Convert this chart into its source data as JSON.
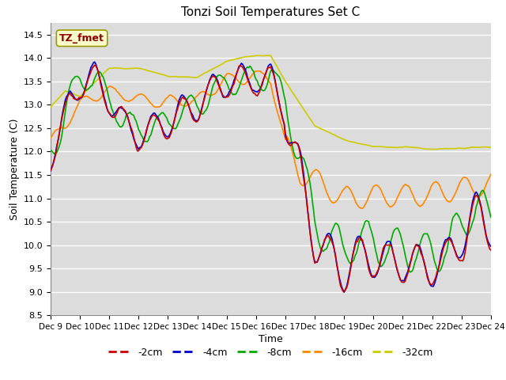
{
  "title": "Tonzi Soil Temperatures Set C",
  "xlabel": "Time",
  "ylabel": "Soil Temperature (C)",
  "ylim": [
    8.5,
    14.75
  ],
  "xlim": [
    0,
    360
  ],
  "plot_bg": "#dcdcdc",
  "fig_bg": "#ffffff",
  "label_box_text": "TZ_fmet",
  "label_box_bg": "#ffffcc",
  "label_box_fg": "#8b0000",
  "grid_color": "#ffffff",
  "series": {
    "-2cm": {
      "color": "#cc0000",
      "lw": 1.2
    },
    "-4cm": {
      "color": "#0000cc",
      "lw": 1.2
    },
    "-8cm": {
      "color": "#00aa00",
      "lw": 1.2
    },
    "-16cm": {
      "color": "#ff8800",
      "lw": 1.2
    },
    "-32cm": {
      "color": "#cccc00",
      "lw": 1.2
    }
  },
  "xtick_labels": [
    "Dec 9",
    "Dec 10",
    "Dec 11",
    "Dec 12",
    "Dec 13",
    "Dec 14",
    "Dec 15",
    "Dec 16",
    "Dec 17",
    "Dec 18",
    "Dec 19",
    "Dec 20",
    "Dec 21",
    "Dec 22",
    "Dec 23",
    "Dec 24"
  ],
  "ytick_positions": [
    8.5,
    9.0,
    9.5,
    10.0,
    10.5,
    11.0,
    11.5,
    12.0,
    12.5,
    13.0,
    13.5,
    14.0,
    14.5
  ]
}
